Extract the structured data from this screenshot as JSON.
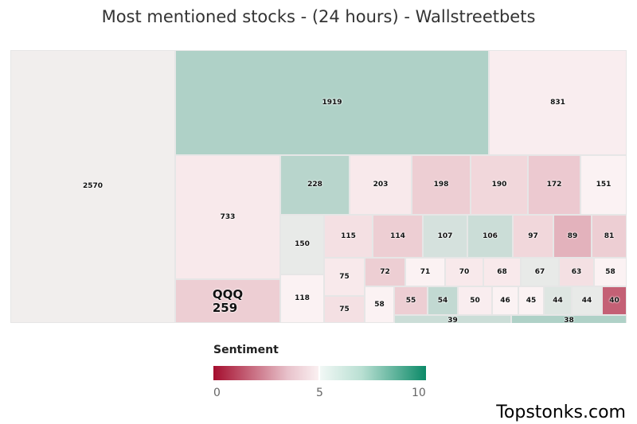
{
  "chart_title": "Most mentioned stocks - (24 hours) - Wallstreetbets",
  "watermark": "Topstonks.com",
  "chart_data": {
    "type": "treemap",
    "title": "Most mentioned stocks - (24 hours) - Wallstreetbets",
    "metric": "mentions",
    "color_metric": "Sentiment",
    "nodes": [
      {
        "ticker": "",
        "value": 2570,
        "sentiment": 5.2
      },
      {
        "ticker": "",
        "value": 1919,
        "sentiment": 6.6
      },
      {
        "ticker": "",
        "value": 831,
        "sentiment": 4.9
      },
      {
        "ticker": "",
        "value": 733,
        "sentiment": 4.8
      },
      {
        "ticker": "QQQ",
        "value": 259,
        "sentiment": 4.2
      },
      {
        "ticker": "",
        "value": 228,
        "sentiment": 6.4
      },
      {
        "ticker": "",
        "value": 203,
        "sentiment": 4.8
      },
      {
        "ticker": "",
        "value": 198,
        "sentiment": 4.2
      },
      {
        "ticker": "",
        "value": 190,
        "sentiment": 4.4
      },
      {
        "ticker": "",
        "value": 172,
        "sentiment": 4.1
      },
      {
        "ticker": "",
        "value": 151,
        "sentiment": 5.0
      },
      {
        "ticker": "",
        "value": 150,
        "sentiment": 5.4
      },
      {
        "ticker": "",
        "value": 118,
        "sentiment": 5.0
      },
      {
        "ticker": "",
        "value": 115,
        "sentiment": 4.6
      },
      {
        "ticker": "",
        "value": 114,
        "sentiment": 4.2
      },
      {
        "ticker": "",
        "value": 107,
        "sentiment": 5.8
      },
      {
        "ticker": "",
        "value": 106,
        "sentiment": 6.0
      },
      {
        "ticker": "",
        "value": 97,
        "sentiment": 4.4
      },
      {
        "ticker": "",
        "value": 89,
        "sentiment": 3.6
      },
      {
        "ticker": "",
        "value": 81,
        "sentiment": 4.2
      },
      {
        "ticker": "",
        "value": 75,
        "sentiment": 4.8
      },
      {
        "ticker": "",
        "value": 75,
        "sentiment": 4.6
      },
      {
        "ticker": "",
        "value": 72,
        "sentiment": 4.2
      },
      {
        "ticker": "",
        "value": 71,
        "sentiment": 5.0
      },
      {
        "ticker": "",
        "value": 70,
        "sentiment": 4.8
      },
      {
        "ticker": "",
        "value": 68,
        "sentiment": 4.8
      },
      {
        "ticker": "",
        "value": 67,
        "sentiment": 5.4
      },
      {
        "ticker": "",
        "value": 63,
        "sentiment": 4.6
      },
      {
        "ticker": "",
        "value": 58,
        "sentiment": 5.0
      },
      {
        "ticker": "",
        "value": 58,
        "sentiment": 5.0
      },
      {
        "ticker": "",
        "value": 55,
        "sentiment": 4.2
      },
      {
        "ticker": "",
        "value": 54,
        "sentiment": 6.2
      },
      {
        "ticker": "",
        "value": 50,
        "sentiment": 4.9
      },
      {
        "ticker": "",
        "value": 46,
        "sentiment": 5.0
      },
      {
        "ticker": "",
        "value": 45,
        "sentiment": 5.0
      },
      {
        "ticker": "",
        "value": 44,
        "sentiment": 5.6
      },
      {
        "ticker": "",
        "value": 44,
        "sentiment": 5.4
      },
      {
        "ticker": "",
        "value": 40,
        "sentiment": 1.8
      },
      {
        "ticker": "",
        "value": 39,
        "sentiment": 6.0
      },
      {
        "ticker": "",
        "value": 38,
        "sentiment": 6.6
      }
    ],
    "legend": {
      "title": "Sentiment",
      "min": 0,
      "mid": 5,
      "max": 10,
      "tick_labels": [
        "0",
        "5",
        "10"
      ],
      "color_low": "#a50e2e",
      "color_mid": "#fbf2f3",
      "color_high": "#0c8a68"
    }
  }
}
